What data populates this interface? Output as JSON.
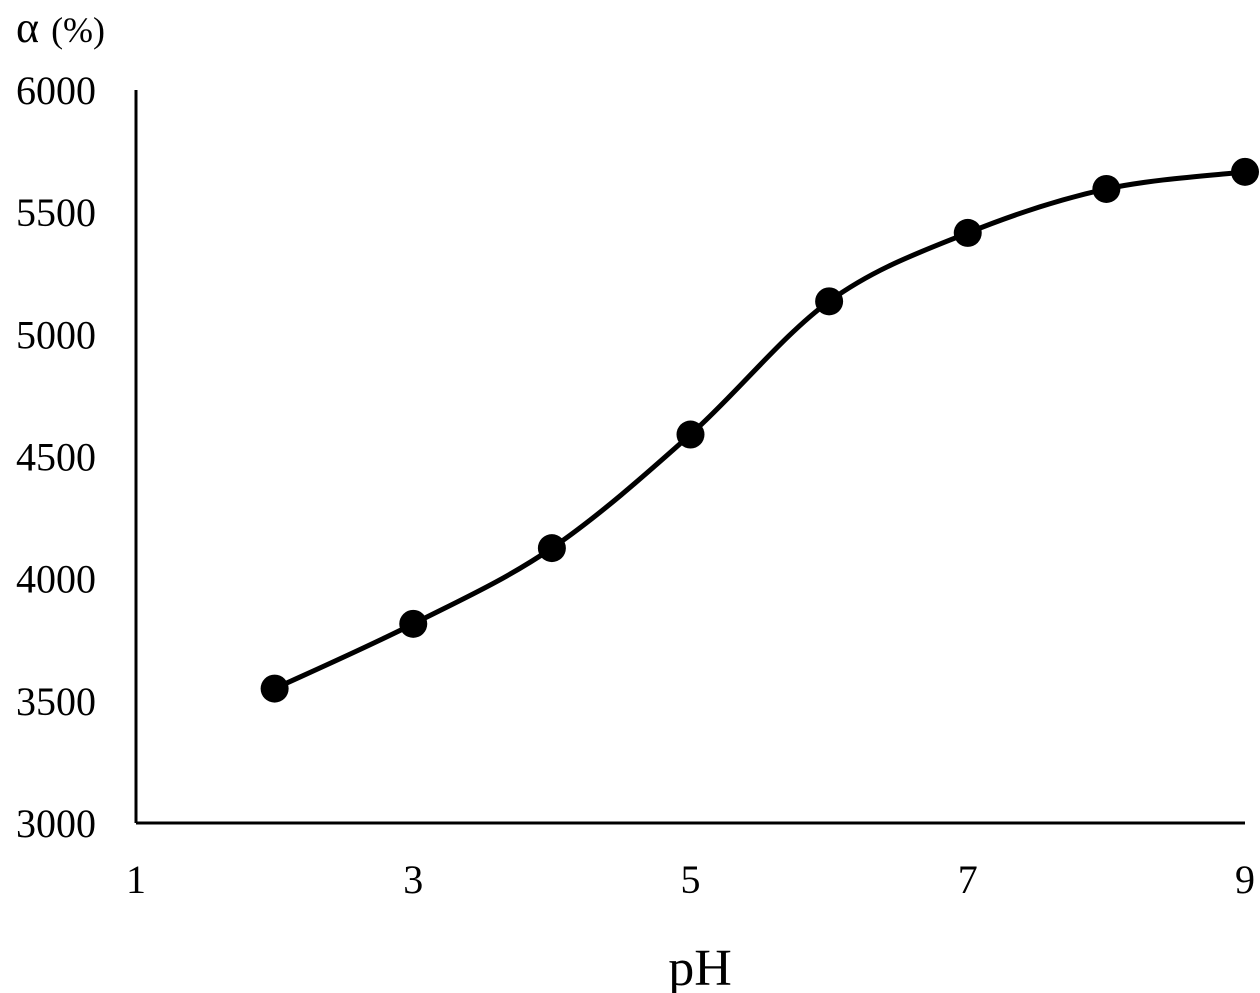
{
  "chart_data": {
    "type": "line",
    "title": "",
    "xlabel": "pH",
    "ylabel_symbol": "α",
    "ylabel_unit": "(%)",
    "xlim": [
      1,
      9
    ],
    "ylim": [
      3000,
      6000
    ],
    "x_ticks": [
      1,
      3,
      5,
      7,
      9
    ],
    "y_ticks": [
      3000,
      3500,
      4000,
      4500,
      5000,
      5500,
      6000
    ],
    "grid": false,
    "legend": "none",
    "line_color": "#000000",
    "smooth": true,
    "series": [
      {
        "x": [
          2,
          3,
          4,
          5,
          6,
          7,
          8,
          9
        ],
        "y": [
          3550,
          3815,
          4125,
          4590,
          5135,
          5415,
          5595,
          5665
        ]
      }
    ]
  }
}
